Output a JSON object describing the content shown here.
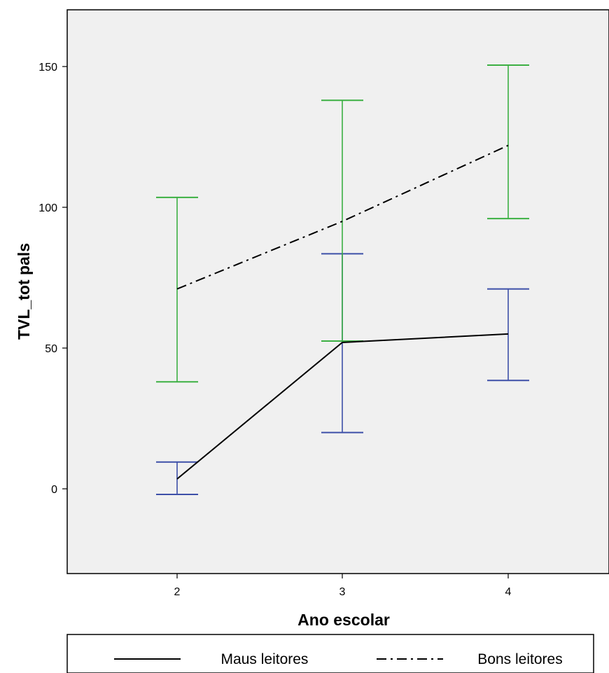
{
  "chart_data": {
    "type": "line",
    "xlabel": "Ano escolar",
    "ylabel": "TVL_tot pals",
    "categories": [
      "2",
      "3",
      "4"
    ],
    "ylim": [
      -30,
      170
    ],
    "yticks": [
      0,
      50,
      100,
      150
    ],
    "grid": false,
    "legend_position": "bottom",
    "series": [
      {
        "name": "Maus leitores",
        "line_style": "solid",
        "line_color": "#000000",
        "errorbar_color": "#3d4fa8",
        "values": [
          3.5,
          52,
          55
        ],
        "lower": [
          -2,
          20,
          38.5
        ],
        "upper": [
          9.5,
          83.5,
          71
        ]
      },
      {
        "name": "Bons leitores",
        "line_style": "dash-dot",
        "line_color": "#000000",
        "errorbar_color": "#3cb043",
        "values": [
          71,
          95,
          122
        ],
        "lower": [
          38,
          52.5,
          96
        ],
        "upper": [
          103.5,
          138,
          150.5
        ]
      }
    ]
  }
}
